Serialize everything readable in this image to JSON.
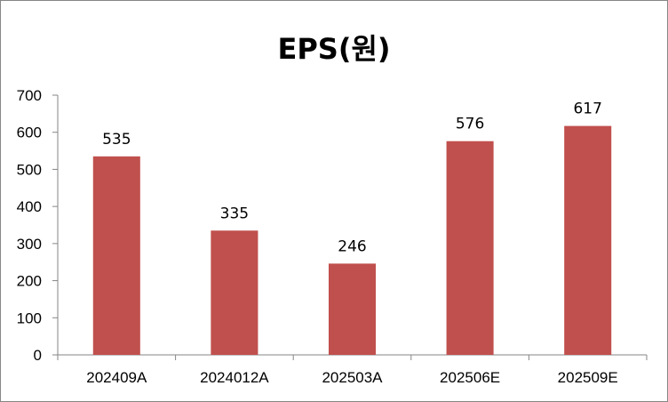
{
  "chart_data": {
    "type": "bar",
    "title": "EPS(원)",
    "categories": [
      "202409A",
      "2024012A",
      "202503A",
      "202506E",
      "202509E"
    ],
    "values": [
      535,
      335,
      246,
      576,
      617
    ],
    "ylim": [
      0,
      700
    ],
    "yticks": [
      0,
      100,
      200,
      300,
      400,
      500,
      600,
      700
    ],
    "grid": false,
    "legend": "none",
    "bar_color": "#C0504D",
    "axis_color": "#868686"
  }
}
